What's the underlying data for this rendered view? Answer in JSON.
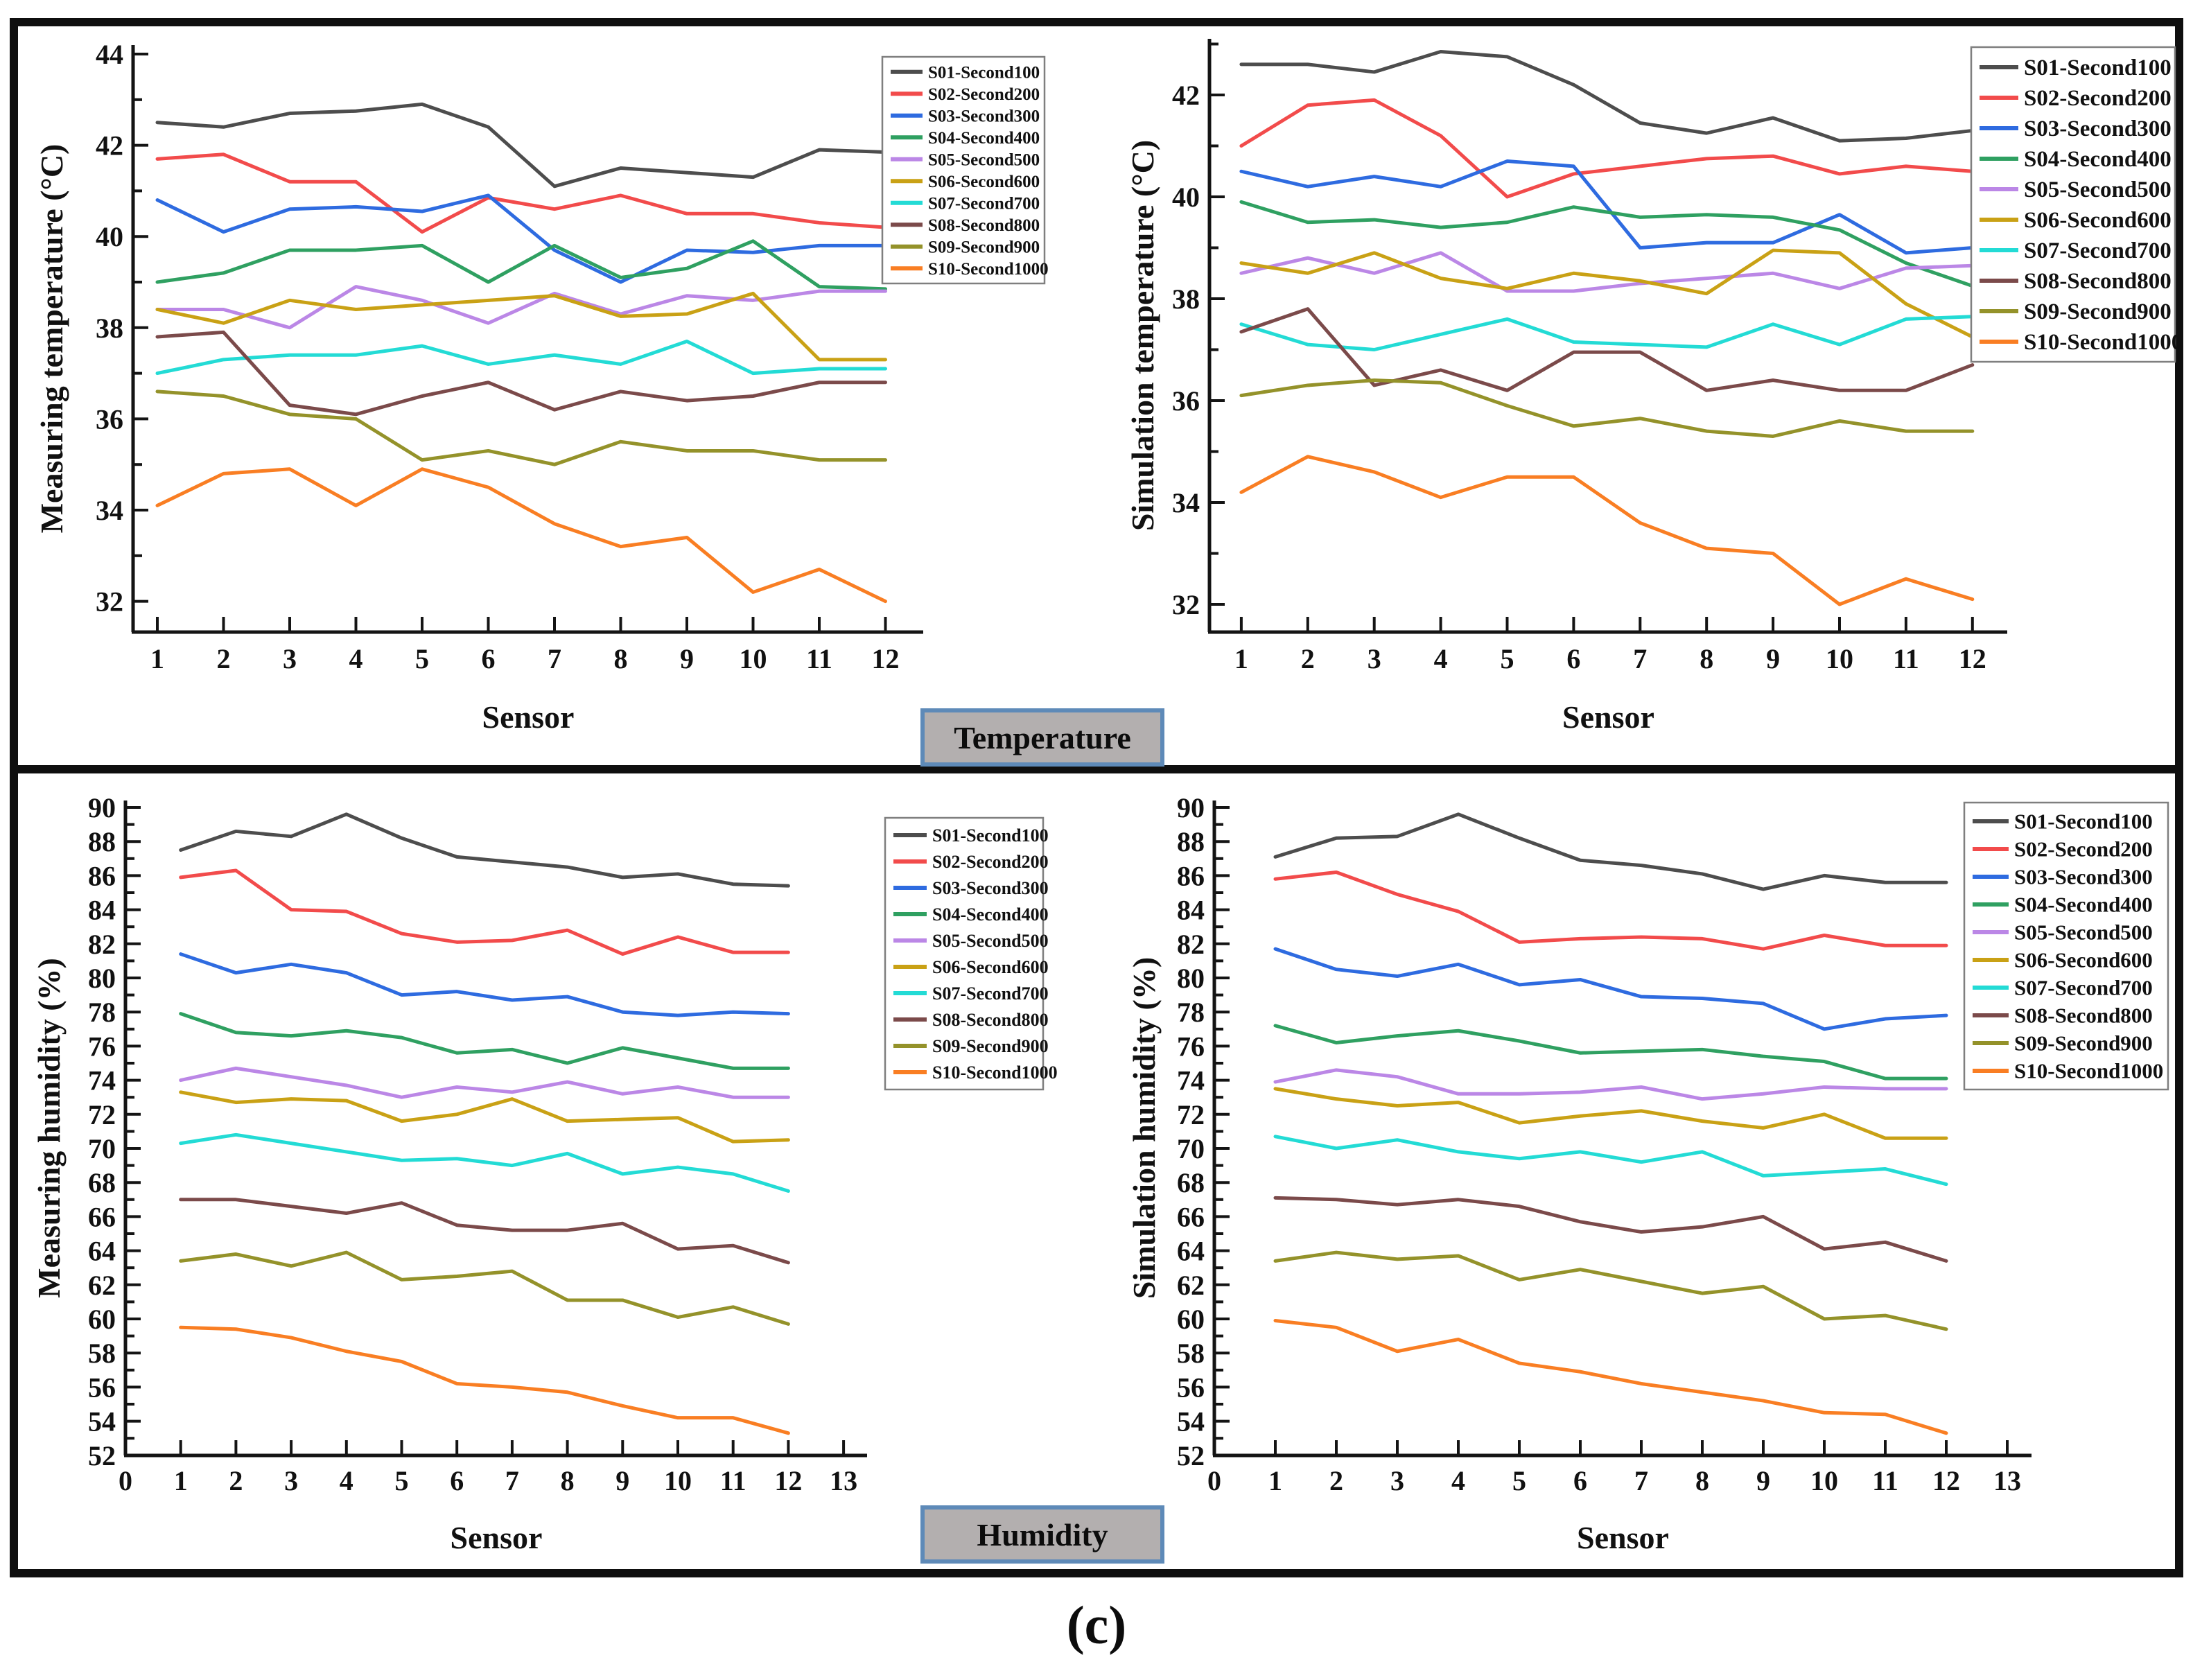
{
  "figure": {
    "caption": "(c)",
    "badges": {
      "temperature": "Temperature",
      "humidity": "Humidity"
    },
    "badge_style": {
      "background": "#b3afaf",
      "border": "#5e8ab8"
    },
    "series_colors": [
      "#4d4d4d",
      "#f24b4b",
      "#2e6be0",
      "#2fa061",
      "#bb87e6",
      "#c9a115",
      "#23dbd5",
      "#7b4a4a",
      "#94922a",
      "#f97e23"
    ],
    "series_names": [
      "S01-Second100",
      "S02-Second200",
      "S03-Second300",
      "S04-Second400",
      "S05-Second500",
      "S06-Second600",
      "S07-Second700",
      "S08-Second800",
      "S09-Second900",
      "S10-Second1000"
    ]
  },
  "chart_data": [
    {
      "type": "line",
      "id": "measuring-temperature",
      "ylabel": "Measuring temperature (°C)",
      "xlabel": "Sensor",
      "x": [
        1,
        2,
        3,
        4,
        5,
        6,
        7,
        8,
        9,
        10,
        11,
        12
      ],
      "x_ticks": [
        1,
        2,
        3,
        4,
        5,
        6,
        7,
        8,
        9,
        10,
        11,
        12
      ],
      "y_ticks": [
        32,
        34,
        36,
        38,
        40,
        42,
        44
      ],
      "ylim": [
        31.3,
        44.2
      ],
      "grid": false,
      "legend_position": "top-right",
      "series": [
        {
          "name": "S01-Second100",
          "values": [
            42.5,
            42.4,
            42.7,
            42.75,
            42.9,
            42.4,
            41.1,
            41.5,
            41.4,
            41.3,
            41.9,
            41.85
          ]
        },
        {
          "name": "S02-Second200",
          "values": [
            41.7,
            41.8,
            41.2,
            41.2,
            40.1,
            40.85,
            40.6,
            40.9,
            40.5,
            40.5,
            40.3,
            40.2
          ]
        },
        {
          "name": "S03-Second300",
          "values": [
            40.8,
            40.1,
            40.6,
            40.65,
            40.55,
            40.9,
            39.7,
            39.0,
            39.7,
            39.65,
            39.8,
            39.8
          ]
        },
        {
          "name": "S04-Second400",
          "values": [
            39.0,
            39.2,
            39.7,
            39.7,
            39.8,
            39.0,
            39.8,
            39.1,
            39.3,
            39.9,
            38.9,
            38.85
          ]
        },
        {
          "name": "S05-Second500",
          "values": [
            38.4,
            38.4,
            38.0,
            38.9,
            38.6,
            38.1,
            38.75,
            38.3,
            38.7,
            38.6,
            38.8,
            38.8
          ]
        },
        {
          "name": "S06-Second600",
          "values": [
            38.4,
            38.1,
            38.6,
            38.4,
            38.5,
            38.6,
            38.7,
            38.25,
            38.3,
            38.75,
            37.3,
            37.3
          ]
        },
        {
          "name": "S07-Second700",
          "values": [
            37.0,
            37.3,
            37.4,
            37.4,
            37.6,
            37.2,
            37.4,
            37.2,
            37.7,
            37.0,
            37.1,
            37.1
          ]
        },
        {
          "name": "S08-Second800",
          "values": [
            37.8,
            37.9,
            36.3,
            36.1,
            36.5,
            36.8,
            36.2,
            36.6,
            36.4,
            36.5,
            36.8,
            36.8
          ]
        },
        {
          "name": "S09-Second900",
          "values": [
            36.6,
            36.5,
            36.1,
            36.0,
            35.1,
            35.3,
            35.0,
            35.5,
            35.3,
            35.3,
            35.1,
            35.1
          ]
        },
        {
          "name": "S10-Second1000",
          "values": [
            34.1,
            34.8,
            34.9,
            34.1,
            34.9,
            34.5,
            33.7,
            33.2,
            33.4,
            32.2,
            32.7,
            32.0
          ]
        }
      ]
    },
    {
      "type": "line",
      "id": "simulation-temperature",
      "ylabel": "Simulation temperature (°C)",
      "xlabel": "Sensor",
      "x": [
        1,
        2,
        3,
        4,
        5,
        6,
        7,
        8,
        9,
        10,
        11,
        12
      ],
      "x_ticks": [
        1,
        2,
        3,
        4,
        5,
        6,
        7,
        8,
        9,
        10,
        11,
        12
      ],
      "y_ticks": [
        32,
        34,
        36,
        38,
        40,
        42
      ],
      "ylim": [
        31.4,
        43.1
      ],
      "grid": false,
      "legend_position": "top-right",
      "series": [
        {
          "name": "S01-Second100",
          "values": [
            42.6,
            42.6,
            42.45,
            42.85,
            42.75,
            42.2,
            41.45,
            41.25,
            41.55,
            41.1,
            41.15,
            41.3
          ]
        },
        {
          "name": "S02-Second200",
          "values": [
            41.0,
            41.8,
            41.9,
            41.2,
            40.0,
            40.45,
            40.6,
            40.75,
            40.8,
            40.45,
            40.6,
            40.5
          ]
        },
        {
          "name": "S03-Second300",
          "values": [
            40.5,
            40.2,
            40.4,
            40.2,
            40.7,
            40.6,
            39.0,
            39.1,
            39.1,
            39.65,
            38.9,
            39.0
          ]
        },
        {
          "name": "S04-Second400",
          "values": [
            39.9,
            39.5,
            39.55,
            39.4,
            39.5,
            39.8,
            39.6,
            39.65,
            39.6,
            39.35,
            38.7,
            38.25
          ]
        },
        {
          "name": "S05-Second500",
          "values": [
            38.5,
            38.8,
            38.5,
            38.9,
            38.15,
            38.15,
            38.3,
            38.4,
            38.5,
            38.2,
            38.6,
            38.65
          ]
        },
        {
          "name": "S06-Second600",
          "values": [
            38.7,
            38.5,
            38.9,
            38.4,
            38.2,
            38.5,
            38.35,
            38.1,
            38.95,
            38.9,
            37.9,
            37.25
          ]
        },
        {
          "name": "S07-Second700",
          "values": [
            37.5,
            37.1,
            37.0,
            37.3,
            37.6,
            37.15,
            37.1,
            37.05,
            37.5,
            37.1,
            37.6,
            37.65
          ]
        },
        {
          "name": "S08-Second800",
          "values": [
            37.35,
            37.8,
            36.3,
            36.6,
            36.2,
            36.95,
            36.95,
            36.2,
            36.4,
            36.2,
            36.2,
            36.7
          ]
        },
        {
          "name": "S09-Second900",
          "values": [
            36.1,
            36.3,
            36.4,
            36.35,
            35.9,
            35.5,
            35.65,
            35.4,
            35.3,
            35.6,
            35.4,
            35.4
          ]
        },
        {
          "name": "S10-Second1000",
          "values": [
            34.2,
            34.9,
            34.6,
            34.1,
            34.5,
            34.5,
            33.6,
            33.1,
            33.0,
            32.0,
            32.5,
            32.1
          ]
        }
      ]
    },
    {
      "type": "line",
      "id": "measuring-humidity",
      "ylabel": "Measuring humidity (%)",
      "xlabel": "Sensor",
      "x": [
        1,
        2,
        3,
        4,
        5,
        6,
        7,
        8,
        9,
        10,
        11,
        12
      ],
      "x_ticks": [
        0,
        1,
        2,
        3,
        4,
        5,
        6,
        7,
        8,
        9,
        10,
        11,
        12,
        13
      ],
      "y_ticks": [
        52,
        54,
        56,
        58,
        60,
        62,
        64,
        66,
        68,
        70,
        72,
        74,
        76,
        78,
        80,
        82,
        84,
        86,
        88,
        90
      ],
      "ylim": [
        52,
        90.4
      ],
      "grid": false,
      "legend_position": "top-right",
      "series": [
        {
          "name": "S01-Second100",
          "values": [
            87.5,
            88.6,
            88.3,
            89.6,
            88.2,
            87.1,
            86.8,
            86.5,
            85.9,
            86.1,
            85.5,
            85.4
          ]
        },
        {
          "name": "S02-Second200",
          "values": [
            85.9,
            86.3,
            84.0,
            83.9,
            82.6,
            82.1,
            82.2,
            82.8,
            81.4,
            82.4,
            81.5,
            81.5
          ]
        },
        {
          "name": "S03-Second300",
          "values": [
            81.4,
            80.3,
            80.8,
            80.3,
            79.0,
            79.2,
            78.7,
            78.9,
            78.0,
            77.8,
            78.0,
            77.9
          ]
        },
        {
          "name": "S04-Second400",
          "values": [
            77.9,
            76.8,
            76.6,
            76.9,
            76.5,
            75.6,
            75.8,
            75.0,
            75.9,
            75.3,
            74.7,
            74.7
          ]
        },
        {
          "name": "S05-Second500",
          "values": [
            74.0,
            74.7,
            74.2,
            73.7,
            73.0,
            73.6,
            73.3,
            73.9,
            73.2,
            73.6,
            73.0,
            73.0
          ]
        },
        {
          "name": "S06-Second600",
          "values": [
            73.3,
            72.7,
            72.9,
            72.8,
            71.6,
            72.0,
            72.9,
            71.6,
            71.7,
            71.8,
            70.4,
            70.5
          ]
        },
        {
          "name": "S07-Second700",
          "values": [
            70.3,
            70.8,
            70.3,
            69.8,
            69.3,
            69.4,
            69.0,
            69.7,
            68.5,
            68.9,
            68.5,
            67.5
          ]
        },
        {
          "name": "S08-Second800",
          "values": [
            67.0,
            67.0,
            66.6,
            66.2,
            66.8,
            65.5,
            65.2,
            65.2,
            65.6,
            64.1,
            64.3,
            63.3
          ]
        },
        {
          "name": "S09-Second900",
          "values": [
            63.4,
            63.8,
            63.1,
            63.9,
            62.3,
            62.5,
            62.8,
            61.1,
            61.1,
            60.1,
            60.7,
            59.7
          ]
        },
        {
          "name": "S10-Second1000",
          "values": [
            59.5,
            59.4,
            58.9,
            58.1,
            57.5,
            56.2,
            56.0,
            55.7,
            54.9,
            54.2,
            54.2,
            53.3
          ]
        }
      ]
    },
    {
      "type": "line",
      "id": "simulation-humidity",
      "ylabel": "Simulation humidity (%)",
      "xlabel": "Sensor",
      "x": [
        1,
        2,
        3,
        4,
        5,
        6,
        7,
        8,
        9,
        10,
        11,
        12
      ],
      "x_ticks": [
        0,
        1,
        2,
        3,
        4,
        5,
        6,
        7,
        8,
        9,
        10,
        11,
        12,
        13
      ],
      "y_ticks": [
        52,
        54,
        56,
        58,
        60,
        62,
        64,
        66,
        68,
        70,
        72,
        74,
        76,
        78,
        80,
        82,
        84,
        86,
        88,
        90
      ],
      "ylim": [
        52,
        90.4
      ],
      "grid": false,
      "legend_position": "top-right",
      "series": [
        {
          "name": "S01-Second100",
          "values": [
            87.1,
            88.2,
            88.3,
            89.6,
            88.2,
            86.9,
            86.6,
            86.1,
            85.2,
            86.0,
            85.6,
            85.6
          ]
        },
        {
          "name": "S02-Second200",
          "values": [
            85.8,
            86.2,
            84.9,
            83.9,
            82.1,
            82.3,
            82.4,
            82.3,
            81.7,
            82.5,
            81.9,
            81.9
          ]
        },
        {
          "name": "S03-Second300",
          "values": [
            81.7,
            80.5,
            80.1,
            80.8,
            79.6,
            79.9,
            78.9,
            78.8,
            78.5,
            77.0,
            77.6,
            77.8
          ]
        },
        {
          "name": "S04-Second400",
          "values": [
            77.2,
            76.2,
            76.6,
            76.9,
            76.3,
            75.6,
            75.7,
            75.8,
            75.4,
            75.1,
            74.1,
            74.1
          ]
        },
        {
          "name": "S05-Second500",
          "values": [
            73.9,
            74.6,
            74.2,
            73.2,
            73.2,
            73.3,
            73.6,
            72.9,
            73.2,
            73.6,
            73.5,
            73.5
          ]
        },
        {
          "name": "S06-Second600",
          "values": [
            73.5,
            72.9,
            72.5,
            72.7,
            71.5,
            71.9,
            72.2,
            71.6,
            71.2,
            72.0,
            70.6,
            70.6
          ]
        },
        {
          "name": "S07-Second700",
          "values": [
            70.7,
            70.0,
            70.5,
            69.8,
            69.4,
            69.8,
            69.2,
            69.8,
            68.4,
            68.6,
            68.8,
            67.9
          ]
        },
        {
          "name": "S08-Second800",
          "values": [
            67.1,
            67.0,
            66.7,
            67.0,
            66.6,
            65.7,
            65.1,
            65.4,
            66.0,
            64.1,
            64.5,
            63.4
          ]
        },
        {
          "name": "S09-Second900",
          "values": [
            63.4,
            63.9,
            63.5,
            63.7,
            62.3,
            62.9,
            62.2,
            61.5,
            61.9,
            60.0,
            60.2,
            59.4
          ]
        },
        {
          "name": "S10-Second1000",
          "values": [
            59.9,
            59.5,
            58.1,
            58.8,
            57.4,
            56.9,
            56.2,
            55.7,
            55.2,
            54.5,
            54.4,
            53.3
          ]
        }
      ]
    }
  ]
}
